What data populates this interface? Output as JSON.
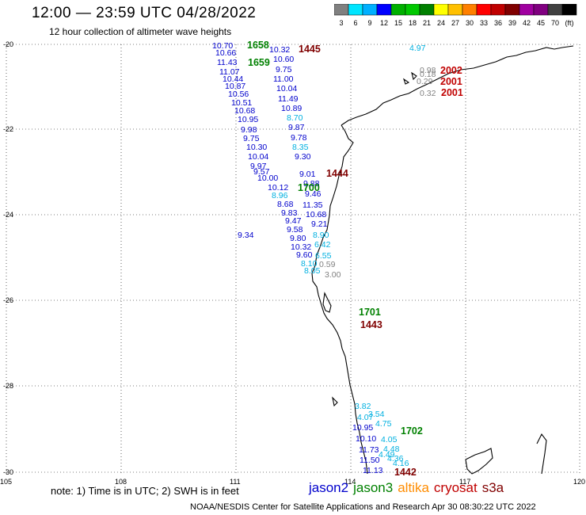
{
  "header": {
    "title": "12:00 — 23:59 UTC 04/28/2022",
    "subtitle": "12 hour collection of altimeter wave heights"
  },
  "colorbar": {
    "ticks": [
      "3",
      "6",
      "9",
      "12",
      "15",
      "18",
      "21",
      "24",
      "27",
      "30",
      "33",
      "36",
      "39",
      "42",
      "45",
      "70",
      "(ft)"
    ],
    "colors": [
      "#808080",
      "#00e5ff",
      "#00b0ff",
      "#0000ff",
      "#00b000",
      "#00c800",
      "#008000",
      "#ffff00",
      "#ffc000",
      "#ff8000",
      "#ff0000",
      "#c00000",
      "#800000",
      "#a000a0",
      "#800080",
      "#404040",
      "#000000"
    ]
  },
  "axes": {
    "lat_labels": [
      "-20",
      "-22",
      "-24",
      "-26",
      "-28",
      "-30"
    ],
    "lon_labels": [
      "105",
      "108",
      "111",
      "114",
      "117",
      "120"
    ]
  },
  "satellite_legend": [
    {
      "name": "jason2",
      "color": "#0000cc"
    },
    {
      "name": "jason3",
      "color": "#008000"
    },
    {
      "name": "altika",
      "color": "#ff8c00"
    },
    {
      "name": "cryosat",
      "color": "#c00000"
    },
    {
      "name": "s3a",
      "color": "#800000"
    }
  ],
  "footnote": "note: 1) Time is in UTC; 2) SWH is in feet",
  "credits": "NOAA/NESDIS Center for Satellite Applications and Research   Apr 30 08:30:22 UTC 2022",
  "time_labels": [
    {
      "text": "1658",
      "color": "#008000"
    },
    {
      "text": "1445",
      "color": "#800000"
    },
    {
      "text": "1659",
      "color": "#008000"
    },
    {
      "text": "2002",
      "color": "#c00000"
    },
    {
      "text": "2001",
      "color": "#c00000"
    },
    {
      "text": "2001",
      "color": "#c00000"
    },
    {
      "text": "1444",
      "color": "#800000"
    },
    {
      "text": "1700",
      "color": "#008000"
    },
    {
      "text": "1701",
      "color": "#008000"
    },
    {
      "text": "1443",
      "color": "#800000"
    },
    {
      "text": "1702",
      "color": "#008000"
    },
    {
      "text": "1442",
      "color": "#800000"
    }
  ],
  "swh_values": [
    {
      "t": "10.32",
      "c": "#0000cc"
    },
    {
      "t": "10.60",
      "c": "#0000cc"
    },
    {
      "t": "9.75",
      "c": "#0000cc"
    },
    {
      "t": "11.00",
      "c": "#0000cc"
    },
    {
      "t": "10.04",
      "c": "#0000cc"
    },
    {
      "t": "11.49",
      "c": "#0000cc"
    },
    {
      "t": "10.89",
      "c": "#0000cc"
    },
    {
      "t": "8.70",
      "c": "#00b0e0"
    },
    {
      "t": "9.87",
      "c": "#0000cc"
    },
    {
      "t": "9.78",
      "c": "#0000cc"
    },
    {
      "t": "8.35",
      "c": "#00b0e0"
    },
    {
      "t": "9.30",
      "c": "#0000cc"
    },
    {
      "t": "9.01",
      "c": "#0000cc"
    },
    {
      "t": "9.88",
      "c": "#0000cc"
    },
    {
      "t": "10.12",
      "c": "#0000cc"
    },
    {
      "t": "9.46",
      "c": "#0000cc"
    },
    {
      "t": "8.96",
      "c": "#00b0e0"
    },
    {
      "t": "8.68",
      "c": "#0000cc"
    },
    {
      "t": "11.35",
      "c": "#0000cc"
    },
    {
      "t": "9.83",
      "c": "#0000cc"
    },
    {
      "t": "10.68",
      "c": "#0000cc"
    },
    {
      "t": "9.47",
      "c": "#0000cc"
    },
    {
      "t": "9.21",
      "c": "#0000cc"
    },
    {
      "t": "9.58",
      "c": "#0000cc"
    },
    {
      "t": "8.90",
      "c": "#00b0e0"
    },
    {
      "t": "9.80",
      "c": "#0000cc"
    },
    {
      "t": "6.42",
      "c": "#00b0e0"
    },
    {
      "t": "10.32",
      "c": "#0000cc"
    },
    {
      "t": "9.60",
      "c": "#0000cc"
    },
    {
      "t": "6.55",
      "c": "#00b0e0"
    },
    {
      "t": "8.10",
      "c": "#00b0e0"
    },
    {
      "t": "0.59",
      "c": "#808080"
    },
    {
      "t": "8.05",
      "c": "#00b0e0"
    },
    {
      "t": "3.00",
      "c": "#808080"
    },
    {
      "t": "10.95",
      "c": "#0000cc"
    },
    {
      "t": "10.10",
      "c": "#0000cc"
    },
    {
      "t": "11.73",
      "c": "#0000cc"
    },
    {
      "t": "11.50",
      "c": "#0000cc"
    },
    {
      "t": "11.13",
      "c": "#0000cc"
    },
    {
      "t": "3.82",
      "c": "#00b0e0"
    },
    {
      "t": "4.07",
      "c": "#00b0e0"
    },
    {
      "t": "3.54",
      "c": "#00b0e0"
    },
    {
      "t": "4.75",
      "c": "#00b0e0"
    },
    {
      "t": "4.49",
      "c": "#00b0e0"
    },
    {
      "t": "4.05",
      "c": "#00b0e0"
    },
    {
      "t": "4.48",
      "c": "#00b0e0"
    },
    {
      "t": "4.36",
      "c": "#00b0e0"
    },
    {
      "t": "4.16",
      "c": "#00b0e0"
    },
    {
      "t": "4.97",
      "c": "#00b0e0"
    },
    {
      "t": "0.98",
      "c": "#808080"
    },
    {
      "t": "0.18",
      "c": "#808080"
    },
    {
      "t": "0.29",
      "c": "#808080"
    },
    {
      "t": "0.32",
      "c": "#808080"
    },
    {
      "t": "10.70",
      "c": "#0000cc"
    },
    {
      "t": "10.66",
      "c": "#0000cc"
    },
    {
      "t": "11.43",
      "c": "#0000cc"
    },
    {
      "t": "11.07",
      "c": "#0000cc"
    },
    {
      "t": "10.44",
      "c": "#0000cc"
    },
    {
      "t": "10.87",
      "c": "#0000cc"
    },
    {
      "t": "10.56",
      "c": "#0000cc"
    },
    {
      "t": "10.51",
      "c": "#0000cc"
    },
    {
      "t": "10.68",
      "c": "#0000cc"
    },
    {
      "t": "10.95",
      "c": "#0000cc"
    },
    {
      "t": "9.98",
      "c": "#0000cc"
    },
    {
      "t": "9.75",
      "c": "#0000cc"
    },
    {
      "t": "10.30",
      "c": "#0000cc"
    },
    {
      "t": "10.04",
      "c": "#0000cc"
    },
    {
      "t": "9.97",
      "c": "#0000cc"
    },
    {
      "t": "9.57",
      "c": "#0000cc"
    },
    {
      "t": "10.00",
      "c": "#0000cc"
    },
    {
      "t": "9.34",
      "c": "#0000cc"
    }
  ]
}
